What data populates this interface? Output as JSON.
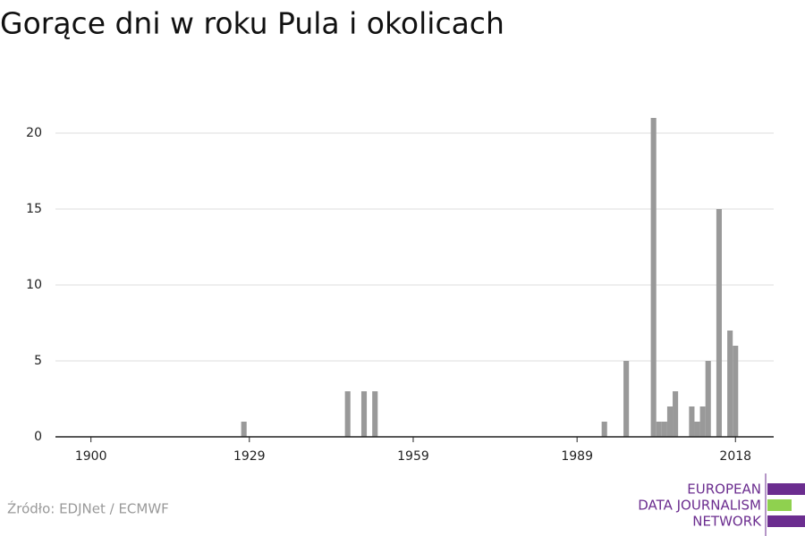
{
  "chart_data": {
    "type": "bar",
    "title": "Gorące dni w roku Pula i okolicach",
    "x": [
      1928,
      1947,
      1950,
      1952,
      1994,
      1998,
      2003,
      2004,
      2005,
      2006,
      2007,
      2010,
      2011,
      2012,
      2013,
      2015,
      2017,
      2018
    ],
    "values": [
      1,
      3,
      3,
      3,
      1,
      5,
      21,
      1,
      1,
      2,
      3,
      2,
      1,
      2,
      5,
      15,
      7,
      6
    ],
    "color": "#999999",
    "xlim": [
      1893.5,
      2025
    ],
    "xticks": [
      1900,
      1929,
      1959,
      1989,
      2018
    ],
    "ylim": [
      0,
      22
    ],
    "yticks": [
      0,
      5,
      10,
      15,
      20
    ],
    "grid": true
  },
  "source": "Źródło: EDJNet / ECMWF",
  "logo": {
    "lines": [
      "EUROPEAN",
      "DATA JOURNALISM",
      "NETWORK"
    ]
  }
}
